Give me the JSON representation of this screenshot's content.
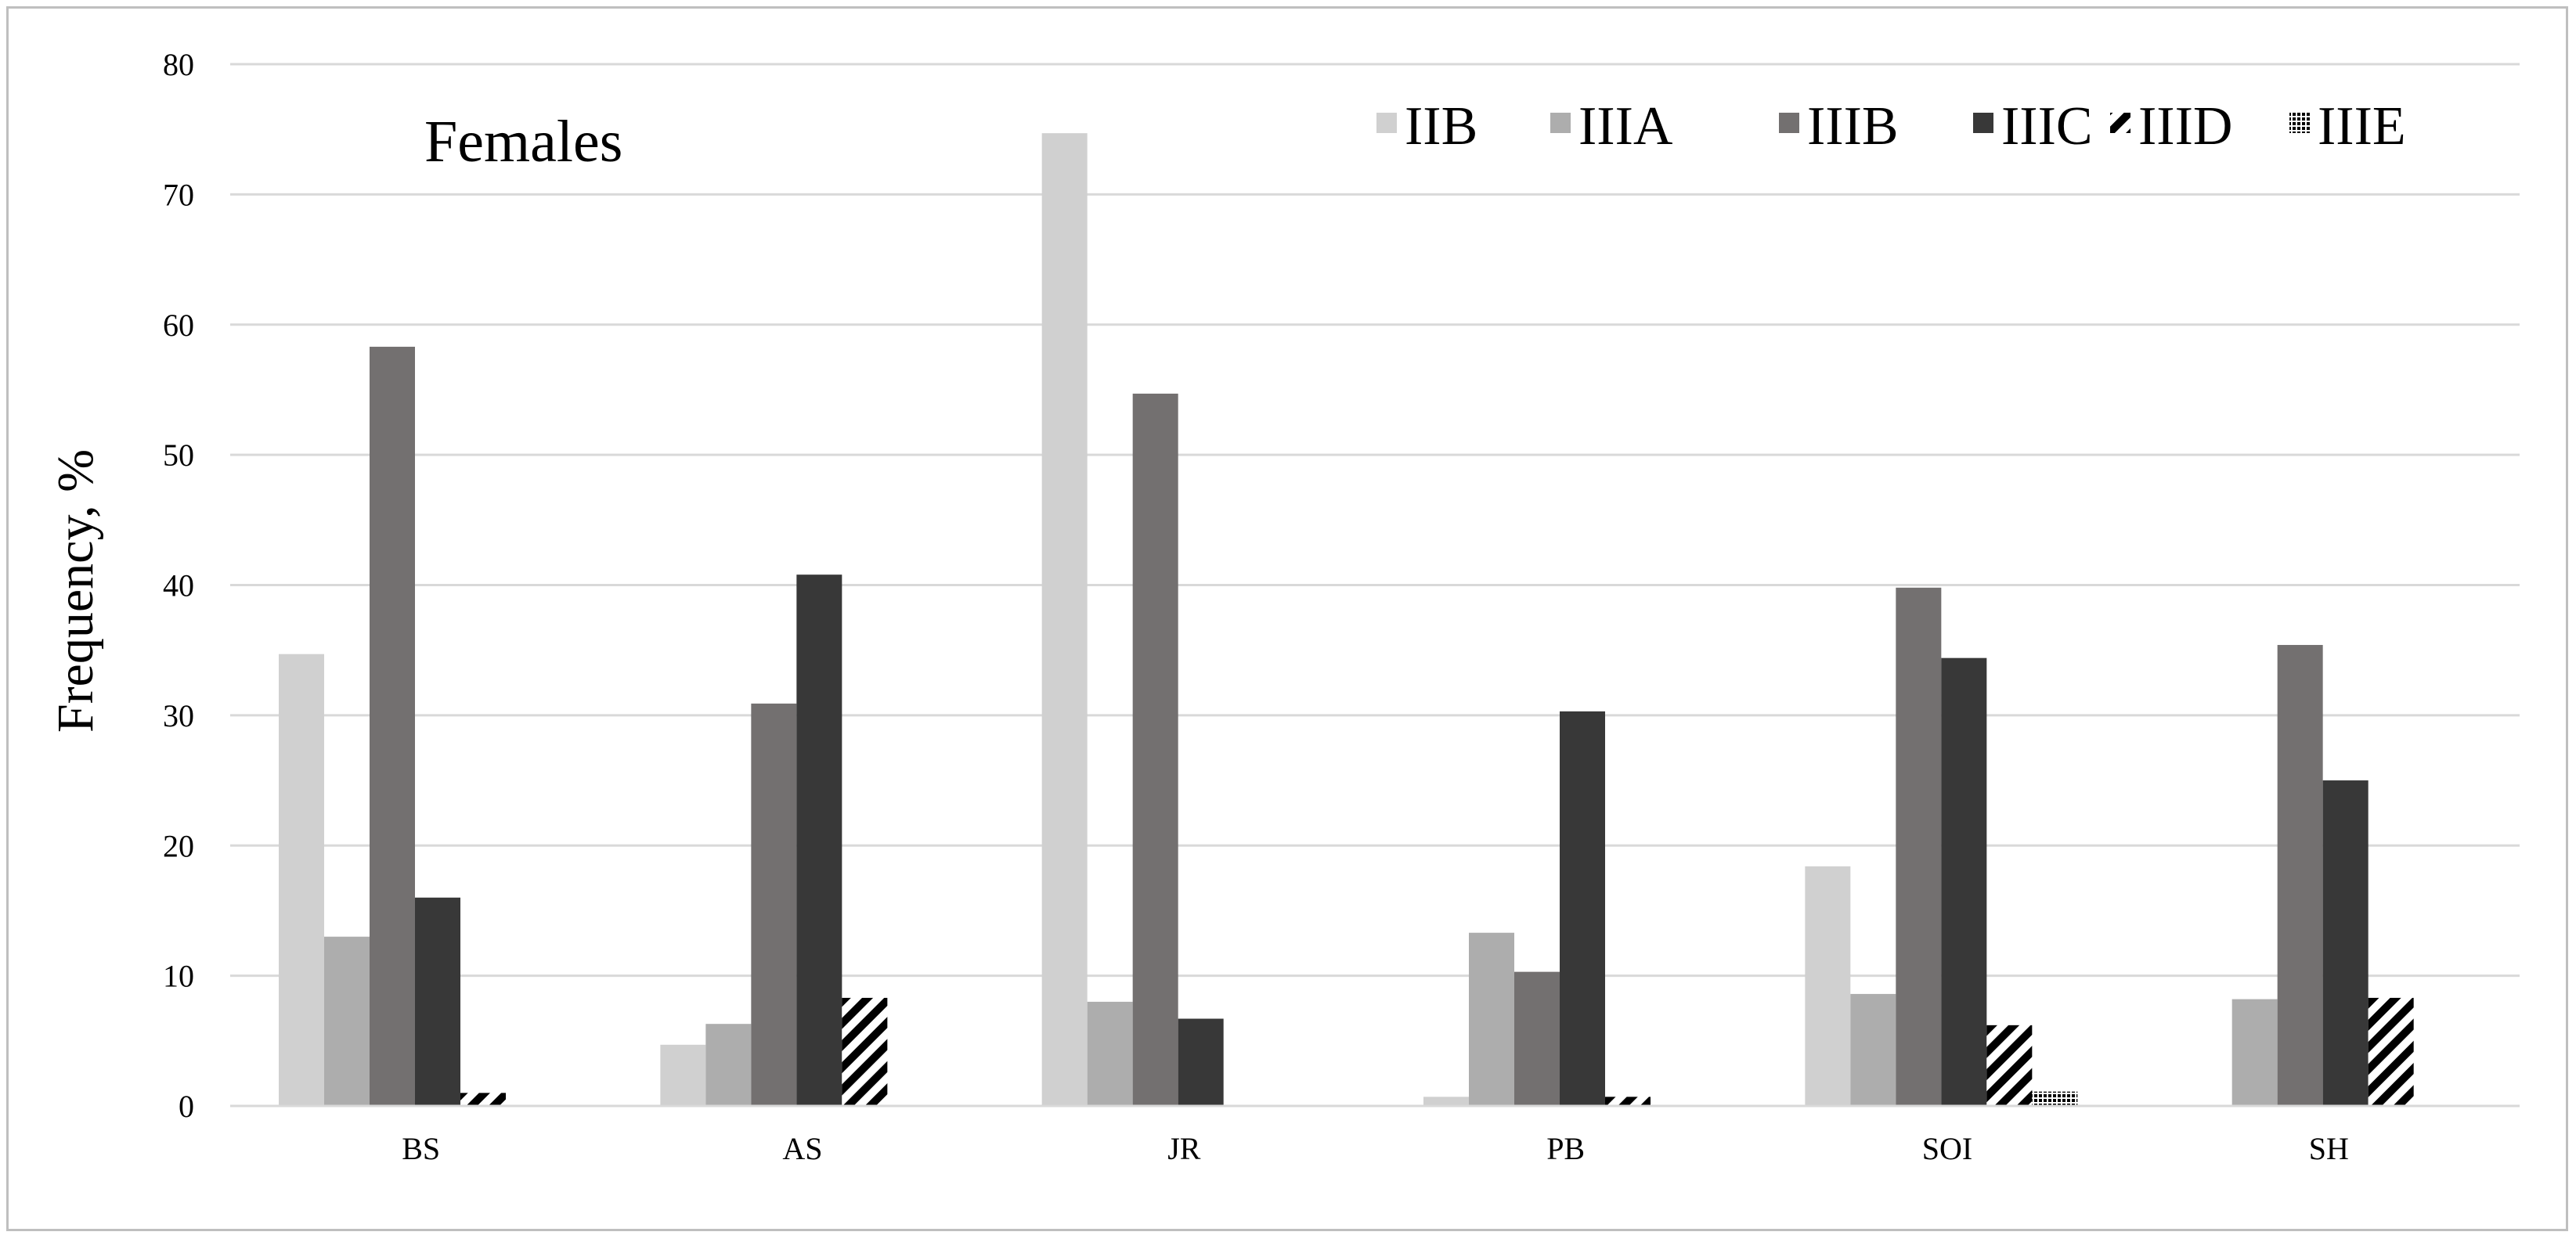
{
  "chart_data": {
    "type": "bar",
    "title": "Females",
    "ylabel": "Frequency, %",
    "xlabel": "",
    "ylim": [
      0,
      80
    ],
    "yticks": [
      0,
      10,
      20,
      30,
      40,
      50,
      60,
      70,
      80
    ],
    "grid": true,
    "legend_position": "top-right",
    "categories": [
      "BS",
      "AS",
      "JR",
      "PB",
      "SOI",
      "SH"
    ],
    "series": [
      {
        "name": "IIB",
        "color": "#d0d0d0",
        "pattern": "solid",
        "values": [
          34.7,
          4.7,
          74.7,
          0.7,
          18.4,
          0
        ]
      },
      {
        "name": "IIIA",
        "color": "#adadad",
        "pattern": "solid",
        "values": [
          13.0,
          6.3,
          8.0,
          13.3,
          8.6,
          8.2
        ]
      },
      {
        "name": "IIIB",
        "color": "#737070",
        "pattern": "solid",
        "values": [
          58.3,
          30.9,
          54.7,
          10.3,
          39.8,
          35.4
        ]
      },
      {
        "name": "IIIC",
        "color": "#383838",
        "pattern": "solid",
        "values": [
          16.0,
          40.8,
          6.7,
          30.3,
          34.4,
          25.0
        ]
      },
      {
        "name": "IIID",
        "color": "#000000",
        "pattern": "hatched",
        "values": [
          1.0,
          8.3,
          0,
          0.7,
          6.2,
          8.3
        ]
      },
      {
        "name": "IIIE",
        "color": "#000000",
        "pattern": "dotted",
        "values": [
          0,
          0,
          0,
          0,
          1.1,
          0
        ]
      }
    ]
  }
}
